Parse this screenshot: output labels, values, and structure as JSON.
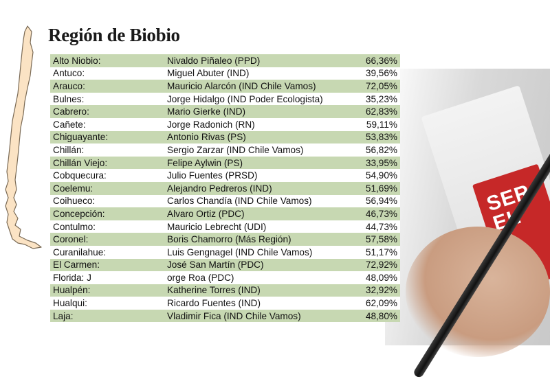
{
  "title": "Región de Biobio",
  "rows": [
    {
      "comuna": "Alto Niobio:",
      "candidato": "Nivaldo Piñaleo (PPD)",
      "porcentaje": "66,36%"
    },
    {
      "comuna": "Antuco:",
      "candidato": "Miguel Abuter (IND)",
      "porcentaje": "39,56%"
    },
    {
      "comuna": "Arauco:",
      "candidato": "Mauricio Alarcón (IND Chile Vamos)",
      "porcentaje": "72,05%"
    },
    {
      "comuna": "Bulnes:",
      "candidato": "Jorge Hidalgo (IND Poder Ecologista)",
      "porcentaje": "35,23%"
    },
    {
      "comuna": "Cabrero:",
      "candidato": "Mario Gierke (IND)",
      "porcentaje": "62,83%"
    },
    {
      "comuna": "Cañete:",
      "candidato": " Jorge Radonich (RN)",
      "porcentaje": "59,11%"
    },
    {
      "comuna": "Chiguayante:",
      "candidato": "Antonio Rivas (PS)",
      "porcentaje": "53,83%"
    },
    {
      "comuna": "Chillán:",
      "candidato": "Sergio Zarzar (IND Chile Vamos)",
      "porcentaje": "56,82%"
    },
    {
      "comuna": "Chillán Viejo:",
      "candidato": "Felipe Aylwin (PS)",
      "porcentaje": "33,95%"
    },
    {
      "comuna": "Cobquecura:",
      "candidato": "Julio Fuentes (PRSD)",
      "porcentaje": "54,90%"
    },
    {
      "comuna": "Coelemu:",
      "candidato": "Alejandro Pedreros (IND)",
      "porcentaje": "51,69%"
    },
    {
      "comuna": "Coihueco:",
      "candidato": "Carlos Chandía (IND Chile Vamos)",
      "porcentaje": "56,94%"
    },
    {
      "comuna": "Concepción:",
      "candidato": "Alvaro Ortiz (PDC)",
      "porcentaje": "46,73%"
    },
    {
      "comuna": "Contulmo:",
      "candidato": "Mauricio Lebrecht (UDI)",
      "porcentaje": "44,73%"
    },
    {
      "comuna": "Coronel:",
      "candidato": "Boris Chamorro (Más Región)",
      "porcentaje": "57,58%"
    },
    {
      "comuna": "Curanilahue:",
      "candidato": "Luis Gengnagel (IND Chile Vamos)",
      "porcentaje": "51,17%"
    },
    {
      "comuna": "El Carmen:",
      "candidato": "José San Martín (PDC)",
      "porcentaje": "72,92%"
    },
    {
      "comuna": "Florida: J",
      "candidato": "orge Roa (PDC)",
      "porcentaje": "48,09%"
    },
    {
      "comuna": "Hualpén:",
      "candidato": "Katherine Torres (IND)",
      "porcentaje": "32,92%"
    },
    {
      "comuna": "Hualqui:",
      "candidato": "Ricardo Fuentes (IND)",
      "porcentaje": "62,09%"
    },
    {
      "comuna": "Laja:",
      "candidato": "Vladimir Fica (IND Chile Vamos)",
      "porcentaje": "48,80%"
    }
  ],
  "photo": {
    "badge_text": "SER EL"
  },
  "colors": {
    "row_band": "#c7d8b2",
    "map_fill": "#fbe3c4",
    "map_stroke": "#7a6a55",
    "badge": "#c62828"
  }
}
